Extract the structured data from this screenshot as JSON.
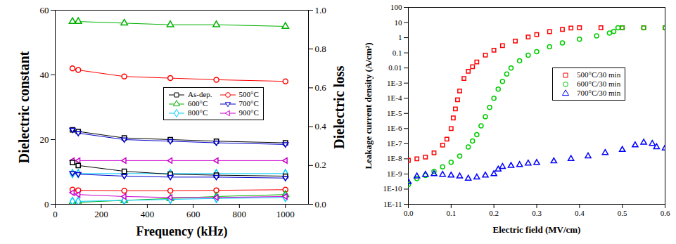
{
  "chart_data": [
    {
      "type": "line",
      "x_label": "Frequency (kHz)",
      "y_label": "Dielectric constant",
      "y2_label": "Dielectric loss",
      "x": [
        75,
        100,
        300,
        500,
        700,
        1000
      ],
      "xlim": [
        0,
        1100
      ],
      "xticks": [
        0,
        200,
        400,
        600,
        800,
        1000
      ],
      "ylim": [
        0,
        60
      ],
      "yticks": [
        0,
        20,
        40,
        60
      ],
      "y2lim": [
        0,
        1
      ],
      "y2ticks": [
        {
          "value": 0,
          "label": "0.0"
        },
        0.2,
        0.4,
        0.6,
        0.8,
        {
          "value": 1,
          "label": "1.0"
        }
      ],
      "legend": "right",
      "series": [
        {
          "name": "As-dep.",
          "color": "#000000",
          "marker": "square",
          "line_style": "solid",
          "values": [
            23,
            22.5,
            20.5,
            20,
            19.5,
            19
          ],
          "loss": [
            0.215,
            0.2,
            0.17,
            0.155,
            0.15,
            0.145
          ]
        },
        {
          "name": "500°C",
          "color": "#ff0000",
          "marker": "circle",
          "line_style": "solid",
          "values": [
            42,
            41.5,
            39.5,
            39,
            38.5,
            38
          ],
          "loss": [
            0.075,
            0.072,
            0.07,
            0.07,
            0.072,
            0.075
          ]
        },
        {
          "name": "600°C",
          "color": "#00b000",
          "marker": "triangle",
          "line_style": "solid",
          "values": [
            56.5,
            56.5,
            56,
            55.5,
            55.5,
            55
          ],
          "loss": [
            0.01,
            0.01,
            0.02,
            0.03,
            0.04,
            0.05
          ]
        },
        {
          "name": "700°C",
          "color": "#0000cc",
          "marker": "triangle-down",
          "line_style": "solid",
          "values": [
            23,
            22,
            20,
            19.5,
            19,
            18.5
          ],
          "loss": [
            0.16,
            0.155,
            0.145,
            0.14,
            0.14,
            0.135
          ]
        },
        {
          "name": "800°C",
          "color": "#00ccff",
          "marker": "diamond",
          "line_style": "solid",
          "values": [
            9.5,
            9.5,
            9.5,
            9.5,
            9.5,
            9.5
          ],
          "loss": [
            0.015,
            0.015,
            0.02,
            0.025,
            0.03,
            0.035
          ]
        },
        {
          "name": "900°C",
          "color": "#cc00cc",
          "marker": "triangle-left",
          "line_style": "solid",
          "values": [
            13.5,
            13.5,
            13.5,
            13.5,
            13.5,
            13.5
          ],
          "loss": [
            0.06,
            0.05,
            0.04,
            0.035,
            0.035,
            0.04
          ]
        }
      ]
    },
    {
      "type": "scatter",
      "x_label": "Electric field (MV/cm)",
      "y_label": "Leakage current density (A/cm²)",
      "log": "y",
      "xlim": [
        0,
        0.6
      ],
      "xticks": [
        {
          "value": 0,
          "label": "0.0"
        },
        0.1,
        0.2,
        0.3,
        0.4,
        0.5,
        0.6
      ],
      "ylim": [
        1e-11,
        100
      ],
      "yticks": [
        {
          "value": 1e-11,
          "label": "1E-11"
        },
        {
          "value": 1e-10,
          "label": "1E-10"
        },
        {
          "value": 1e-09,
          "label": "1E-9"
        },
        {
          "value": 1e-08,
          "label": "1E-8"
        },
        {
          "value": 1e-07,
          "label": "1E-7"
        },
        {
          "value": 1e-06,
          "label": "1E-6"
        },
        {
          "value": 1e-05,
          "label": "1E-5"
        },
        {
          "value": 0.0001,
          "label": "1E-4"
        },
        {
          "value": 0.001,
          "label": "1E-3"
        },
        0.01,
        0.1,
        1,
        10,
        100
      ],
      "legend": "right",
      "series": [
        {
          "name": "500°C/30 min",
          "color": "#ff0000",
          "marker": "square",
          "x": [
            0,
            0.02,
            0.04,
            0.06,
            0.08,
            0.09,
            0.1,
            0.105,
            0.11,
            0.115,
            0.12,
            0.13,
            0.14,
            0.15,
            0.16,
            0.18,
            0.2,
            0.22,
            0.25,
            0.28,
            0.3,
            0.33,
            0.36,
            0.38,
            0.4,
            0.45,
            0.5,
            0.55,
            0.6
          ],
          "values": [
            8e-09,
            1e-08,
            1.3e-08,
            2.5e-08,
            8e-08,
            2e-07,
            1e-06,
            5e-06,
            2e-05,
            8e-05,
            0.0003,
            0.002,
            0.006,
            0.012,
            0.025,
            0.07,
            0.15,
            0.3,
            0.6,
            1.1,
            1.6,
            2.5,
            3.5,
            4.3,
            4.5,
            4.5,
            4.5,
            4.5,
            4.5
          ]
        },
        {
          "name": "600°C/30 min",
          "color": "#00cc00",
          "marker": "circle",
          "x": [
            0,
            0.02,
            0.04,
            0.06,
            0.08,
            0.1,
            0.12,
            0.14,
            0.15,
            0.16,
            0.17,
            0.18,
            0.19,
            0.2,
            0.21,
            0.22,
            0.23,
            0.24,
            0.26,
            0.28,
            0.3,
            0.33,
            0.36,
            0.4,
            0.44,
            0.47,
            0.48,
            0.49,
            0.5,
            0.55,
            0.6
          ],
          "values": [
            2e-10,
            5e-10,
            8e-10,
            1.5e-09,
            3e-09,
            6e-09,
            1.5e-08,
            6e-08,
            1.5e-07,
            4e-07,
            1.5e-06,
            6e-06,
            2.5e-05,
            0.0001,
            0.0004,
            0.0013,
            0.004,
            0.01,
            0.03,
            0.07,
            0.12,
            0.25,
            0.45,
            0.8,
            1.3,
            2,
            2.6,
            4.5,
            4.5,
            4.5,
            4.5
          ]
        },
        {
          "name": "700°C/30 min",
          "color": "#0000ff",
          "marker": "triangle",
          "x": [
            0,
            0.02,
            0.04,
            0.06,
            0.08,
            0.1,
            0.12,
            0.14,
            0.16,
            0.18,
            0.2,
            0.21,
            0.22,
            0.24,
            0.26,
            0.28,
            0.3,
            0.34,
            0.38,
            0.42,
            0.46,
            0.5,
            0.53,
            0.55,
            0.57,
            0.58,
            0.6
          ],
          "values": [
            3e-10,
            7e-10,
            9e-10,
            1e-09,
            9e-10,
            8e-10,
            7e-10,
            5e-10,
            6e-10,
            8e-10,
            1e-09,
            2e-09,
            3e-09,
            3.5e-09,
            4e-09,
            5e-09,
            5.5e-09,
            7e-09,
            1e-08,
            1.5e-08,
            2.5e-08,
            4e-08,
            8e-08,
            1.2e-07,
            1e-07,
            6e-08,
            5e-08
          ]
        }
      ]
    }
  ]
}
